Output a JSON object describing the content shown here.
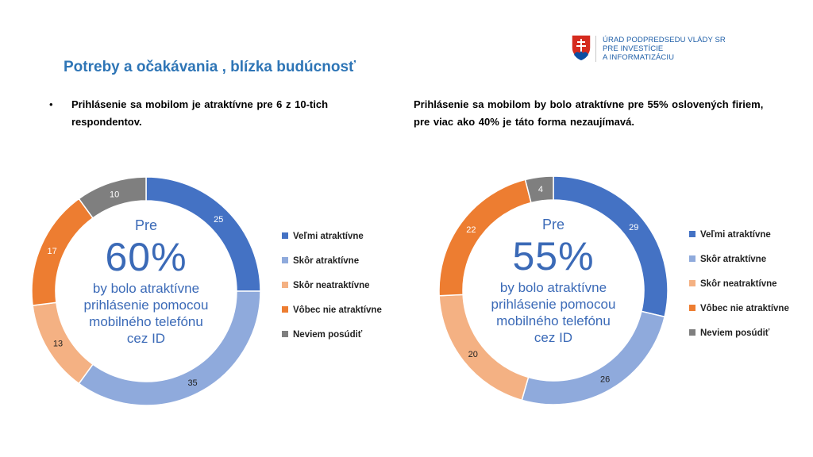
{
  "header": {
    "title": "Potreby a očakávania , blízka budúcnosť"
  },
  "logo": {
    "line1": "ÚRAD PODPREDSEDU VLÁDY SR",
    "line2": "PRE INVESTÍCIE",
    "line3": "A INFORMATIZÁCIU"
  },
  "left_text": {
    "bullet": "•",
    "text": "Prihlásenie sa mobilom je atraktívne pre 6 z 10-tich respondentov."
  },
  "right_text": {
    "text": "Prihlásenie sa mobilom by bolo atraktívne pre 55% oslovených firiem, pre viac ako 40% je táto forma nezaujímavá."
  },
  "colors": {
    "velmi": "#4472C4",
    "skor_atr": "#8FAADC",
    "skor_neatr": "#F4B183",
    "vobec": "#ED7D31",
    "neviem": "#7F7F7F",
    "center_text": "#3B6AB7",
    "title": "#2E75B6"
  },
  "chart_data": [
    {
      "type": "pie",
      "variant": "donut",
      "categories": [
        "Veľmi atraktívne",
        "Skôr atraktívne",
        "Skôr neatraktívne",
        "Vôbec nie atraktívne",
        "Neviem posúdiť"
      ],
      "values": [
        25,
        35,
        13,
        17,
        10
      ],
      "legend_position": "right",
      "center": {
        "pre": "Pre",
        "big": "60%",
        "desc": [
          "by bolo atraktívne",
          "prihlásenie pomocou",
          "mobilného telefónu",
          "cez ID"
        ]
      }
    },
    {
      "type": "pie",
      "variant": "donut",
      "categories": [
        "Veľmi atraktívne",
        "Skôr atraktívne",
        "Skôr neatraktívne",
        "Vôbec nie atraktívne",
        "Neviem posúdiť"
      ],
      "values": [
        29,
        26,
        20,
        22,
        4
      ],
      "legend_position": "right",
      "center": {
        "pre": "Pre",
        "big": "55%",
        "desc": [
          "by bolo atraktívne",
          "prihlásenie pomocou",
          "mobilného telefónu",
          "cez ID"
        ]
      }
    }
  ]
}
